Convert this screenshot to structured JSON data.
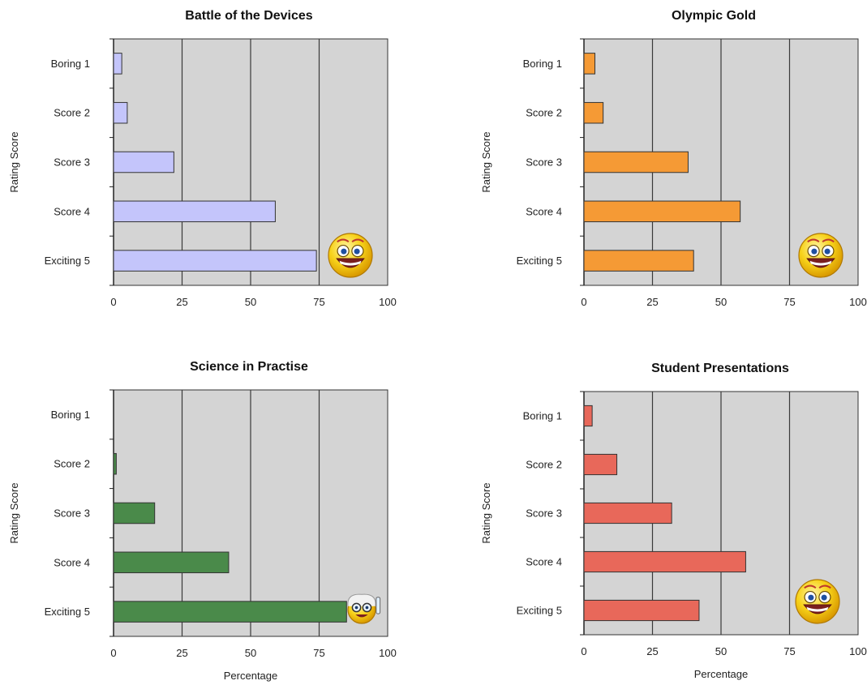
{
  "chart_data": [
    {
      "type": "bar",
      "orientation": "horizontal",
      "title": "Battle of the Devices",
      "ylabel": "Rating Score",
      "xlabel": "",
      "categories": [
        "Boring 1",
        "Score 2",
        "Score 3",
        "Score 4",
        "Exciting 5"
      ],
      "values": [
        3,
        5,
        22,
        59,
        74
      ],
      "xlim": [
        0,
        100
      ],
      "xticks": [
        "0",
        "25",
        "50",
        "75",
        "100"
      ],
      "grid": true,
      "bar_color": "#c4c5fb",
      "plot_bg": "#d4d4d4",
      "icon": "smiley-face-icon"
    },
    {
      "type": "bar",
      "orientation": "horizontal",
      "title": "Olympic Gold",
      "ylabel": "Rating Score",
      "xlabel": "",
      "categories": [
        "Boring 1",
        "Score 2",
        "Score 3",
        "Score 4",
        "Exciting 5"
      ],
      "values": [
        4,
        7,
        38,
        57,
        40
      ],
      "xlim": [
        0,
        100
      ],
      "xticks": [
        "0",
        "25",
        "50",
        "75",
        "100"
      ],
      "grid": true,
      "bar_color": "#f59a35",
      "plot_bg": "#d4d4d4",
      "icon": "smiley-face-icon"
    },
    {
      "type": "bar",
      "orientation": "horizontal",
      "title": "Science in Practise",
      "ylabel": "Rating Score",
      "xlabel": "Percentage",
      "categories": [
        "Boring 1",
        "Score 2",
        "Score 3",
        "Score 4",
        "Exciting 5"
      ],
      "values": [
        0,
        1,
        15,
        42,
        85
      ],
      "xlim": [
        0,
        100
      ],
      "xticks": [
        "0",
        "25",
        "50",
        "75",
        "100"
      ],
      "grid": true,
      "bar_color": "#4a8a4a",
      "plot_bg": "#d4d4d4",
      "icon": "scientist-smiley-icon"
    },
    {
      "type": "bar",
      "orientation": "horizontal",
      "title": "Student Presentations",
      "ylabel": "Rating Score",
      "xlabel": "Percentage",
      "categories": [
        "Boring 1",
        "Score 2",
        "Score 3",
        "Score 4",
        "Exciting 5"
      ],
      "values": [
        3,
        12,
        32,
        59,
        42
      ],
      "xlim": [
        0,
        100
      ],
      "xticks": [
        "0",
        "25",
        "50",
        "75",
        "100"
      ],
      "grid": true,
      "bar_color": "#e8685a",
      "plot_bg": "#d4d4d4",
      "icon": "smiley-face-icon"
    }
  ]
}
